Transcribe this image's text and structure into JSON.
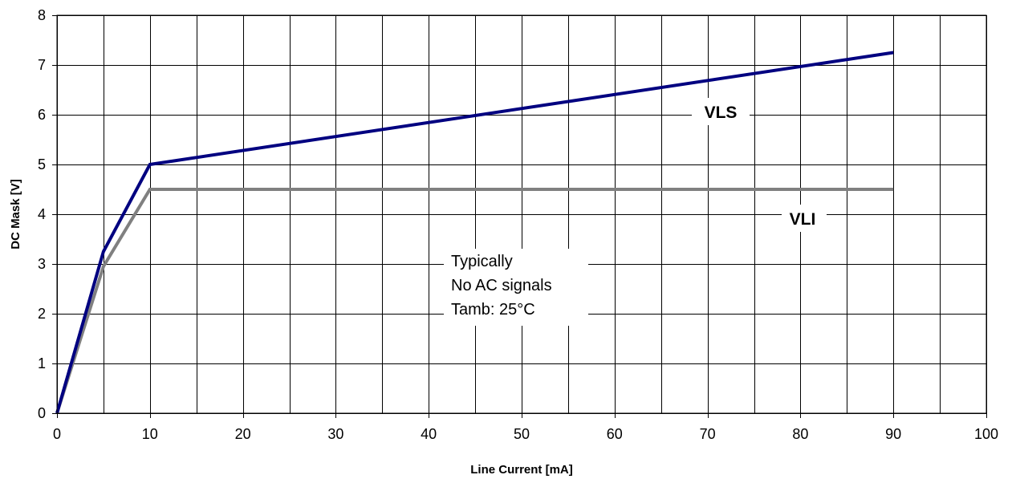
{
  "chart_data": {
    "type": "line",
    "title": "",
    "xlabel": "Line Current [mA]",
    "ylabel": "DC Mask [V]",
    "xlim": [
      0,
      100
    ],
    "ylim": [
      0,
      8
    ],
    "xticks": [
      0,
      10,
      20,
      30,
      40,
      50,
      60,
      70,
      80,
      90,
      100
    ],
    "yticks": [
      0,
      1,
      2,
      3,
      4,
      5,
      6,
      7,
      8
    ],
    "x_minor_step": 5,
    "grid": true,
    "legend": "none",
    "series": [
      {
        "name": "VLS",
        "color": "#000080",
        "x": [
          0,
          5,
          10,
          90
        ],
        "y": [
          0,
          3.25,
          5.0,
          7.25
        ]
      },
      {
        "name": "VLI",
        "color": "#808080",
        "x": [
          0,
          5,
          10,
          90
        ],
        "y": [
          0,
          2.95,
          4.5,
          4.5
        ]
      }
    ],
    "annotation_lines": [
      "Typically",
      "No AC signals",
      "Tamb: 25°C"
    ]
  }
}
